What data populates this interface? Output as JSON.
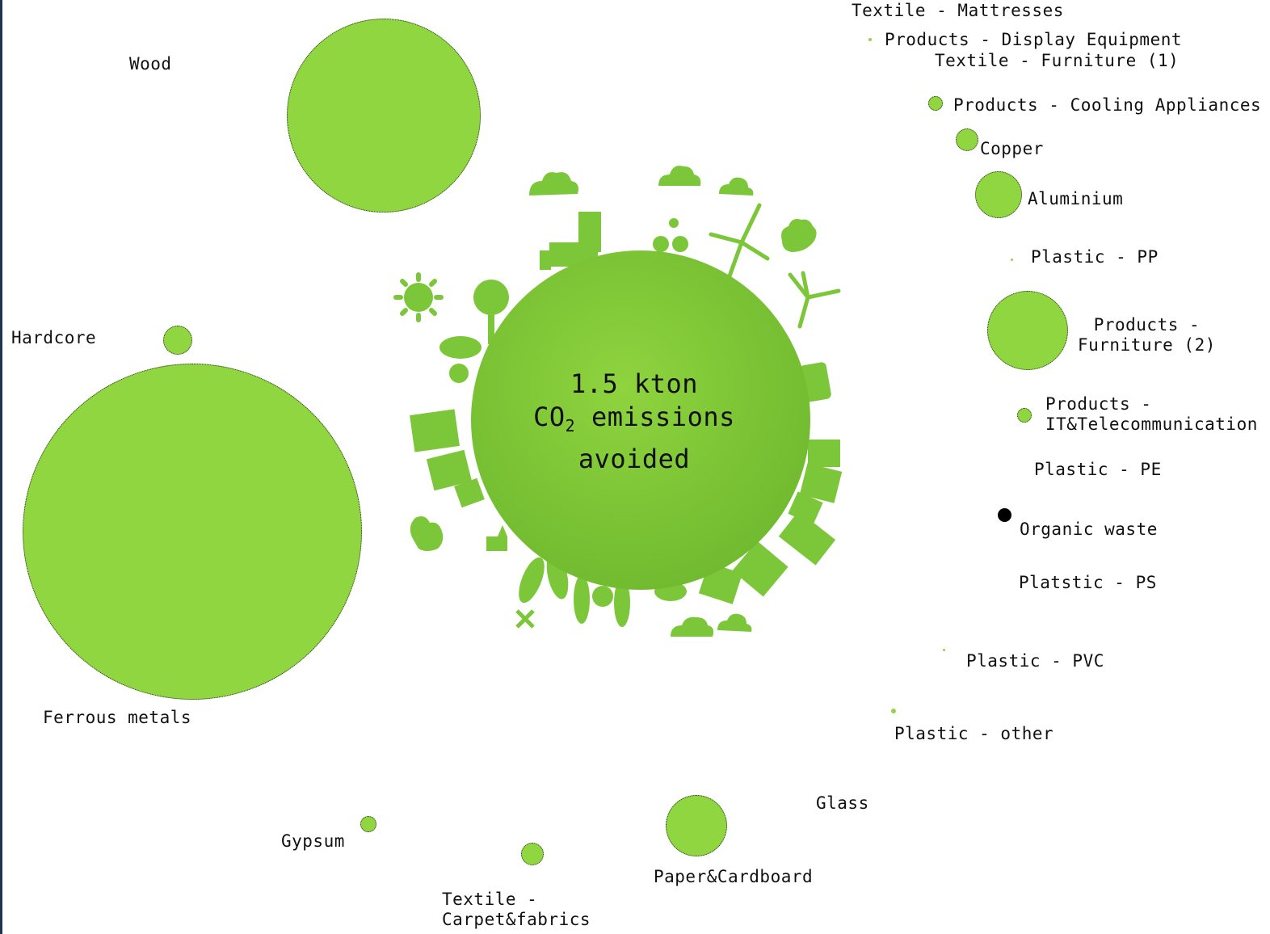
{
  "center": {
    "line1": "1.5 kton",
    "line2_prefix": "CO",
    "line2_sub": "2",
    "line2_suffix": " emissions",
    "line3": "avoided"
  },
  "colors": {
    "bubble_fill": "#8fd641",
    "bubble_border": "#2a2a2a",
    "globe_fill": "#7cc63a",
    "frame_edge": "#1e3355",
    "organic_waste": "#000000"
  },
  "materials": [
    {
      "id": "wood",
      "label": "Wood"
    },
    {
      "id": "hardcore",
      "label": "Hardcore"
    },
    {
      "id": "ferrous",
      "label": "Ferrous metals"
    },
    {
      "id": "gypsum",
      "label": "Gypsum"
    },
    {
      "id": "carpet",
      "label": "Textile -\nCarpet&fabrics"
    },
    {
      "id": "paper",
      "label": "Paper&Cardboard"
    },
    {
      "id": "glass",
      "label": "Glass"
    },
    {
      "id": "mattresses",
      "label": "Textile - Mattresses"
    },
    {
      "id": "display",
      "label": "Products - Display Equipment"
    },
    {
      "id": "furniture1",
      "label": "Textile - Furniture (1)"
    },
    {
      "id": "cooling",
      "label": "Products - Cooling Appliances"
    },
    {
      "id": "copper",
      "label": "Copper"
    },
    {
      "id": "aluminium",
      "label": "Aluminium"
    },
    {
      "id": "pp",
      "label": "Plastic - PP"
    },
    {
      "id": "furniture2",
      "label": "Products -\nFurniture (2)"
    },
    {
      "id": "ittel",
      "label": "Products -\nIT&Telecommunication"
    },
    {
      "id": "pe",
      "label": "Plastic - PE"
    },
    {
      "id": "organic",
      "label": "Organic waste"
    },
    {
      "id": "ps",
      "label": "Platstic - PS"
    },
    {
      "id": "pvc",
      "label": "Plastic - PVC"
    },
    {
      "id": "other",
      "label": "Plastic - other"
    }
  ]
}
